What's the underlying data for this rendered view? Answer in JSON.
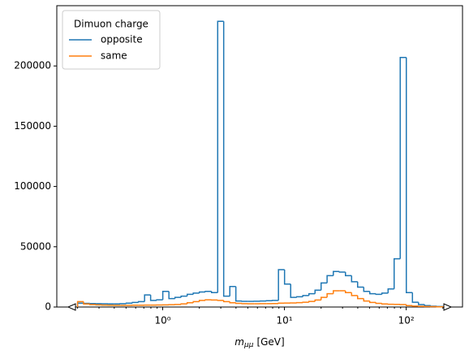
{
  "chart_data": {
    "type": "histogram",
    "x_label": {
      "symbol": "m",
      "subscript": "μμ",
      "unit": "[GeV]"
    },
    "legend_title": "Dimuon charge",
    "legend": "upper left",
    "log_x": true,
    "bins": [
      0.2,
      0.224,
      0.252,
      0.283,
      0.317,
      0.356,
      0.399,
      0.448,
      0.502,
      0.564,
      0.632,
      0.71,
      0.796,
      0.893,
      1.002,
      1.125,
      1.262,
      1.416,
      1.589,
      1.783,
      2.0,
      2.24,
      2.52,
      2.83,
      3.17,
      3.56,
      3.99,
      4.48,
      5.02,
      5.64,
      6.32,
      7.1,
      7.96,
      8.93,
      10.02,
      11.25,
      12.62,
      14.16,
      15.89,
      17.83,
      20.0,
      22.4,
      25.2,
      28.3,
      31.7,
      35.6,
      39.9,
      44.8,
      50.2,
      56.4,
      63.2,
      71.0,
      79.6,
      89.3,
      100.2,
      112.5,
      126.2,
      141.6,
      158.9,
      178.3,
      200
    ],
    "series": [
      {
        "name": "opposite",
        "color": "#1f77b4",
        "values": [
          3200,
          3000,
          2900,
          2800,
          2700,
          2600,
          2600,
          2800,
          3200,
          3800,
          4500,
          10000,
          5500,
          6000,
          13000,
          7000,
          8000,
          9000,
          10500,
          11500,
          12500,
          13000,
          12000,
          237000,
          9000,
          17000,
          5000,
          4700,
          4700,
          4800,
          5000,
          5200,
          5500,
          31000,
          19000,
          8000,
          8500,
          9500,
          11000,
          14000,
          20000,
          26000,
          29500,
          29000,
          26000,
          21000,
          16500,
          13000,
          11000,
          10500,
          11500,
          15000,
          40000,
          207000,
          12000,
          4000,
          2000,
          1200,
          700,
          400
        ]
      },
      {
        "name": "same",
        "color": "#ff7f0e",
        "values": [
          4500,
          2500,
          2000,
          1800,
          1600,
          1500,
          1400,
          1400,
          1400,
          1500,
          1500,
          1600,
          1600,
          1700,
          1800,
          1900,
          2100,
          2600,
          3500,
          4500,
          5500,
          6000,
          5800,
          5500,
          4500,
          3500,
          3000,
          2800,
          2700,
          2700,
          2800,
          2800,
          2900,
          3200,
          3300,
          3400,
          3600,
          4000,
          4600,
          5800,
          8000,
          11000,
          13500,
          13500,
          12000,
          9500,
          7000,
          5000,
          3800,
          3000,
          2500,
          2300,
          2200,
          2000,
          1200,
          800,
          600,
          400,
          300,
          200
        ]
      }
    ],
    "xlim": [
      0.135,
      290
    ],
    "xticks": [
      {
        "value": 1,
        "label": "10⁰"
      },
      {
        "value": 10,
        "label": "10¹"
      },
      {
        "value": 100,
        "label": "10²"
      }
    ],
    "xminorticks": [
      0.2,
      0.3,
      0.4,
      0.5,
      0.6,
      0.7,
      0.8,
      0.9,
      2,
      3,
      4,
      5,
      6,
      7,
      8,
      9,
      20,
      30,
      40,
      50,
      60,
      70,
      80,
      90,
      200
    ],
    "ylim": [
      0,
      250000
    ],
    "yticks": [
      0,
      50000,
      100000,
      150000,
      200000
    ]
  }
}
